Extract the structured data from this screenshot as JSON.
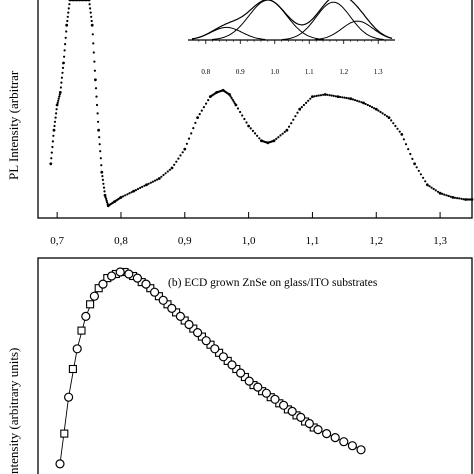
{
  "chart_data": [
    {
      "panel": "a",
      "type": "scatter",
      "ylabel": "PL Intensity (arbitrar",
      "x_ticks": [
        "0,7",
        "0,8",
        "0,9",
        "1,0",
        "1,1",
        "1,2",
        "1,3"
      ],
      "x_tick_values": [
        0.7,
        0.8,
        0.9,
        1.0,
        1.1,
        1.2,
        1.3
      ],
      "xlim": [
        0.67,
        1.35
      ],
      "ylim": [
        0,
        100
      ],
      "grid": false,
      "series": [
        {
          "marker": "dot",
          "x": [
            0.69,
            0.695,
            0.7,
            0.705,
            0.71,
            0.715,
            0.72,
            0.725,
            0.73,
            0.735,
            0.74,
            0.745,
            0.75,
            0.755,
            0.76,
            0.765,
            0.77,
            0.775,
            0.78,
            0.79,
            0.8,
            0.82,
            0.84,
            0.86,
            0.88,
            0.9,
            0.92,
            0.94,
            0.95,
            0.96,
            0.97,
            0.98,
            1.0,
            1.02,
            1.03,
            1.04,
            1.06,
            1.08,
            1.1,
            1.12,
            1.14,
            1.16,
            1.18,
            1.2,
            1.22,
            1.24,
            1.26,
            1.28,
            1.3,
            1.32,
            1.34,
            1.35
          ],
          "y": [
            22,
            38,
            50,
            56,
            70,
            88,
            100,
            100,
            100,
            100,
            100,
            100,
            100,
            88,
            62,
            38,
            18,
            7,
            2,
            4,
            6,
            9,
            12,
            15,
            20,
            29,
            44,
            54,
            56,
            57,
            55,
            50,
            40,
            33,
            32,
            33,
            38,
            48,
            54,
            55,
            54,
            53,
            51,
            48,
            44,
            36,
            22,
            12,
            8,
            6,
            5,
            5
          ]
        }
      ]
    },
    {
      "panel": "inset",
      "type": "line",
      "x_ticks": [
        "0.8",
        "0.9",
        "1.0",
        "1.1",
        "1.2",
        "1.3"
      ],
      "x_tick_values": [
        0.8,
        0.9,
        1.0,
        1.1,
        1.2,
        1.3
      ],
      "xlim": [
        0.76,
        1.34
      ],
      "series": [
        {
          "center": 0.86,
          "width": 0.045,
          "amplitude": 0.3
        },
        {
          "center": 0.98,
          "width": 0.055,
          "amplitude": 0.95
        },
        {
          "center": 1.17,
          "width": 0.05,
          "amplitude": 0.9
        },
        {
          "center": 1.24,
          "width": 0.045,
          "amplitude": 0.45
        }
      ]
    },
    {
      "panel": "b",
      "type": "scatter",
      "title": "(b)  ECD grown ZnSe on glass/ITO substrates",
      "ylabel": "ntensity (arbitrary units)",
      "ylim": [
        0,
        100
      ],
      "grid": false,
      "series": [
        {
          "marker": "circle",
          "x": [
            0,
            2,
            4,
            6,
            8,
            10,
            12,
            14,
            16,
            18,
            20,
            22,
            24,
            26,
            28,
            30,
            32,
            34,
            36,
            38,
            40,
            42,
            44,
            46,
            48,
            50,
            52,
            54,
            56,
            58,
            60,
            62,
            64,
            66,
            68,
            70
          ],
          "y": [
            5,
            38,
            62,
            78,
            88,
            94,
            98,
            100,
            99,
            97,
            94,
            90,
            86,
            82,
            78,
            74,
            70,
            66,
            62,
            58,
            54,
            50,
            46,
            43,
            40,
            37,
            34,
            31,
            28,
            25,
            22,
            20,
            18,
            16,
            14,
            12
          ]
        },
        {
          "marker": "square",
          "x": [
            1,
            3,
            5,
            7,
            9,
            11,
            13,
            15,
            17,
            19,
            21,
            23,
            25,
            27,
            29,
            31,
            33,
            35,
            37,
            39,
            41,
            43,
            45,
            47,
            49,
            51,
            53,
            55,
            57,
            59
          ],
          "y": [
            20,
            52,
            71,
            84,
            92,
            97,
            99,
            100,
            98,
            95,
            92,
            88,
            84,
            80,
            76,
            72,
            68,
            64,
            60,
            56,
            52,
            48,
            44,
            41,
            38,
            35,
            32,
            29,
            26,
            23
          ]
        }
      ]
    }
  ]
}
